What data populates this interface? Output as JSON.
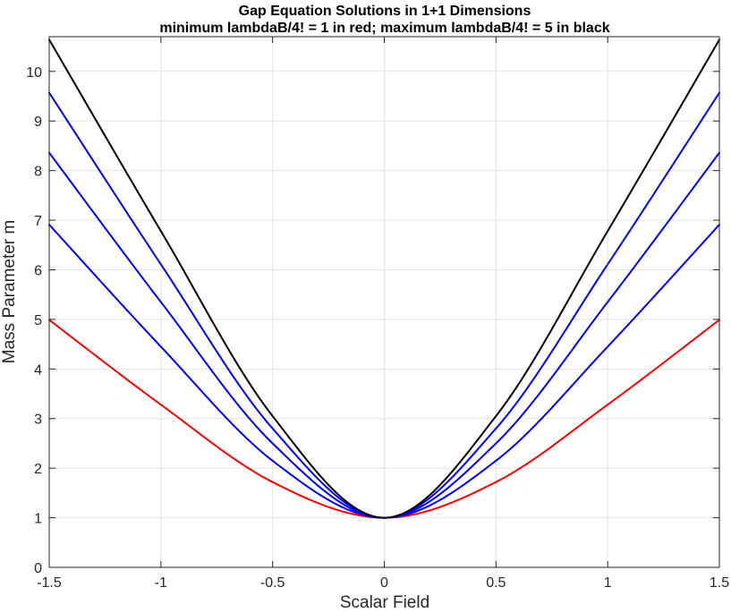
{
  "chart_data": {
    "type": "line",
    "title": "Gap Equation Solutions in 1+1 Dimensions",
    "subtitle": "minimum lambdaB/4! = 1 in red; maximum lambdaB/4! = 5 in black",
    "xlabel": "Scalar Field",
    "ylabel": "Mass Parameter m",
    "xlim": [
      -1.5,
      1.5
    ],
    "ylim": [
      0,
      10.7
    ],
    "xticks": [
      "-1.5",
      "-1",
      "-0.5",
      "0",
      "0.5",
      "1",
      "1.5"
    ],
    "yticks": [
      "0",
      "1",
      "2",
      "3",
      "4",
      "5",
      "6",
      "7",
      "8",
      "9",
      "10"
    ],
    "grid": true,
    "series": [
      {
        "color": "#ff0000",
        "values_at": [
          [
            -1.5,
            4.99
          ],
          [
            -1.0,
            3.28
          ],
          [
            -0.5,
            1.72
          ],
          [
            0,
            1.0
          ],
          [
            0.5,
            1.72
          ],
          [
            1.0,
            3.28
          ],
          [
            1.5,
            4.99
          ]
        ]
      },
      {
        "color": "#0000ff",
        "values_at": [
          [
            -1.5,
            6.91
          ],
          [
            -1.0,
            4.45
          ],
          [
            -0.5,
            2.15
          ],
          [
            0,
            1.0
          ],
          [
            0.5,
            2.15
          ],
          [
            1.0,
            4.45
          ],
          [
            1.5,
            6.91
          ]
        ]
      },
      {
        "color": "#0000ff",
        "values_at": [
          [
            -1.5,
            8.36
          ],
          [
            -1.0,
            5.35
          ],
          [
            -0.5,
            2.5
          ],
          [
            0,
            1.0
          ],
          [
            0.5,
            2.5
          ],
          [
            1.0,
            5.35
          ],
          [
            1.5,
            8.36
          ]
        ]
      },
      {
        "color": "#0000ff",
        "values_at": [
          [
            -1.5,
            9.57
          ],
          [
            -1.0,
            6.11
          ],
          [
            -0.5,
            2.8
          ],
          [
            0,
            1.0
          ],
          [
            0.5,
            2.8
          ],
          [
            1.0,
            6.11
          ],
          [
            1.5,
            9.57
          ]
        ]
      },
      {
        "color": "#000000",
        "values_at": [
          [
            -1.5,
            10.64
          ],
          [
            -1.0,
            6.78
          ],
          [
            -0.5,
            3.05
          ],
          [
            0,
            1.0
          ],
          [
            0.5,
            3.05
          ],
          [
            1.0,
            6.78
          ],
          [
            1.5,
            10.64
          ]
        ]
      }
    ]
  }
}
